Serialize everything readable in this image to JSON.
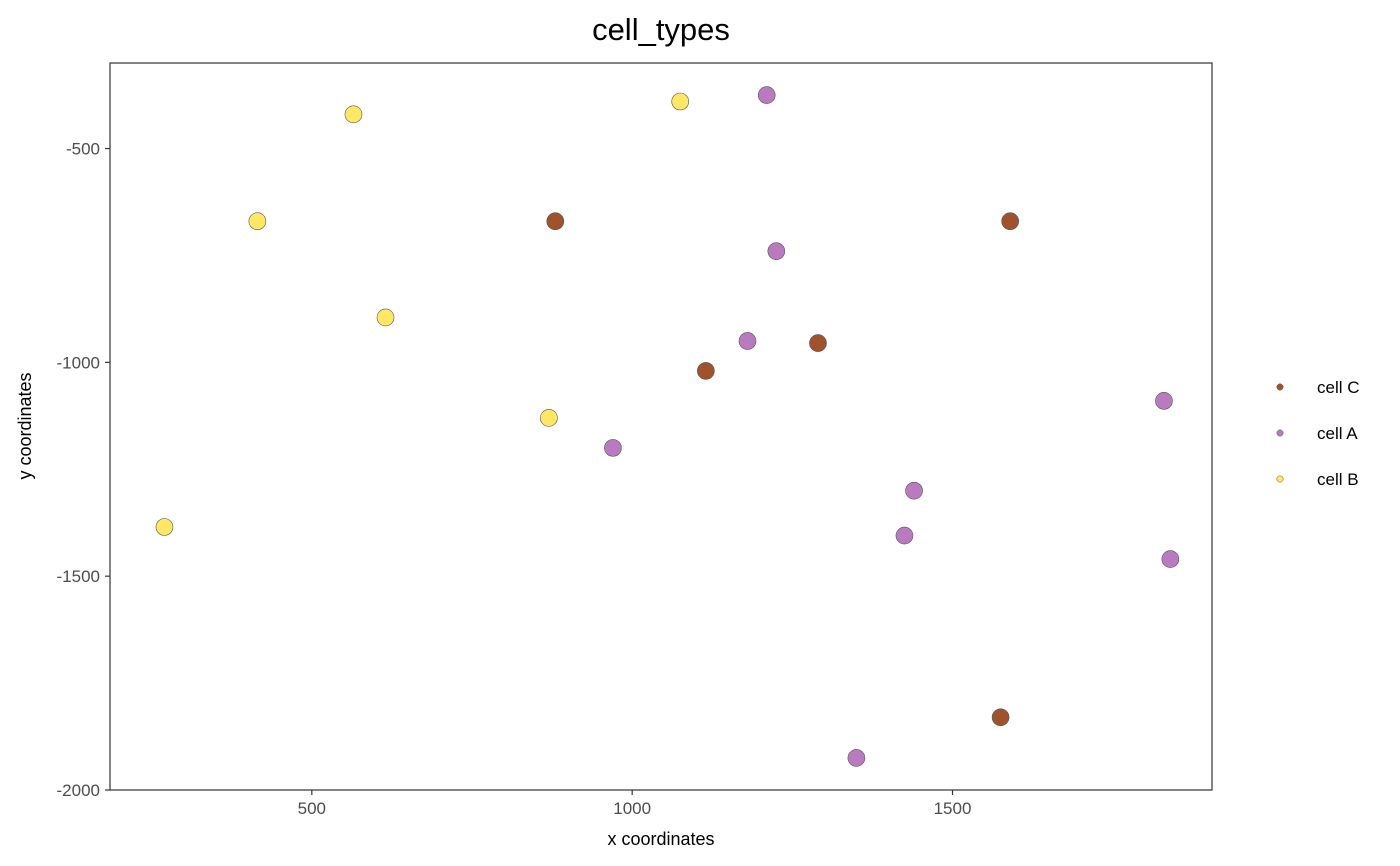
{
  "chart_data": {
    "type": "scatter",
    "title": "cell_types",
    "xlabel": "x coordinates",
    "ylabel": "y coordinates",
    "xlim": [
      185,
      1905
    ],
    "ylim": [
      -2000,
      -300
    ],
    "x_ticks": [
      500,
      1000,
      1500
    ],
    "x_tick_labels": [
      "500",
      "1000",
      "1500"
    ],
    "y_ticks": [
      -500,
      -1000,
      -1500,
      -2000
    ],
    "y_tick_labels": [
      "-500",
      "-1000",
      "-1500",
      "-2000"
    ],
    "grid": false,
    "legend_position": "right",
    "series": [
      {
        "name": "cell C",
        "color": "#A0522D",
        "points": [
          [
            880,
            -670
          ],
          [
            1590,
            -670
          ],
          [
            1290,
            -955
          ],
          [
            1115,
            -1020
          ],
          [
            1575,
            -1830
          ]
        ]
      },
      {
        "name": "cell A",
        "color": "#BA7AC0",
        "points": [
          [
            1210,
            -375
          ],
          [
            1225,
            -740
          ],
          [
            1180,
            -950
          ],
          [
            970,
            -1200
          ],
          [
            1830,
            -1090
          ],
          [
            1440,
            -1300
          ],
          [
            1425,
            -1405
          ],
          [
            1840,
            -1460
          ],
          [
            1350,
            -1925
          ]
        ]
      },
      {
        "name": "cell B",
        "color": "#FFE766",
        "points": [
          [
            565,
            -420
          ],
          [
            1075,
            -390
          ],
          [
            415,
            -670
          ],
          [
            615,
            -895
          ],
          [
            870,
            -1130
          ],
          [
            270,
            -1385
          ]
        ]
      }
    ]
  }
}
